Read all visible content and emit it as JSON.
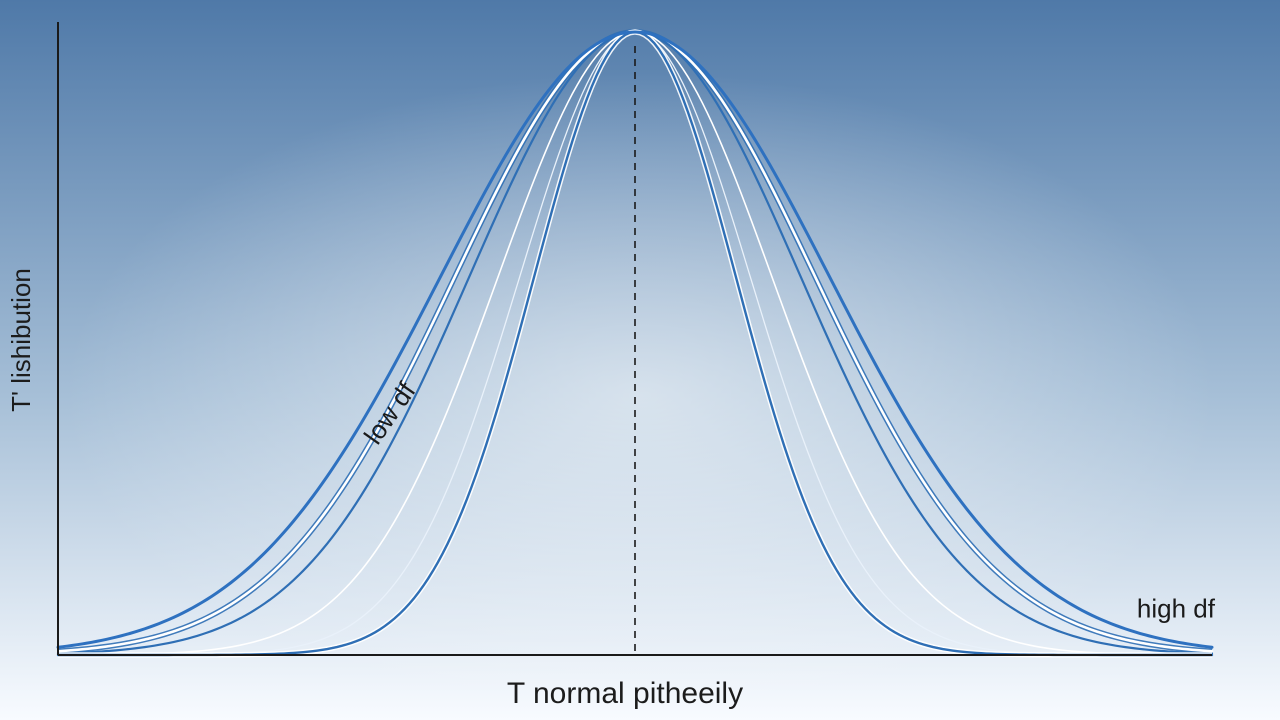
{
  "chart_data": {
    "type": "line",
    "title": "",
    "xlabel": "T normal pitheeily",
    "ylabel": "T' lishibution",
    "x_range": [
      -4,
      4
    ],
    "y_range": [
      0,
      1
    ],
    "grid": false,
    "legend": "none",
    "center_line": {
      "x": 0,
      "style": "dashed"
    },
    "annotations": [
      {
        "text": "low df",
        "x": -1.65,
        "y": 0.38,
        "rotation": -55
      },
      {
        "text": "high df",
        "x": 3.75,
        "y": 0.06
      }
    ],
    "series": [
      {
        "role": "outer-white",
        "color": "#ffffff",
        "width": 2.6,
        "sigma": 1.25,
        "outline": true
      },
      {
        "role": "outer-blue",
        "color": "#2f6fb5",
        "width": 2.2,
        "sigma": 1.15,
        "outline": false
      },
      {
        "role": "mid-white-1",
        "color": "#ffffff",
        "width": 1.6,
        "sigma": 0.95,
        "outline": false
      },
      {
        "role": "mid-white-2",
        "color": "#e9f1fa",
        "width": 1.3,
        "sigma": 0.8,
        "outline": false
      },
      {
        "role": "inner-blue",
        "color": "#2f6fb5",
        "width": 2.4,
        "sigma": 0.7,
        "outline": true
      },
      {
        "role": "right-blue-tail",
        "color": "#2e71c0",
        "width": 3.0,
        "sigma": 1.35,
        "outline": false
      }
    ],
    "colors": {
      "axis": "#1a1a1a",
      "background_top": "#4f79a8",
      "background_bottom": "#f8fbff",
      "dashed": "#1a1a1a"
    }
  }
}
